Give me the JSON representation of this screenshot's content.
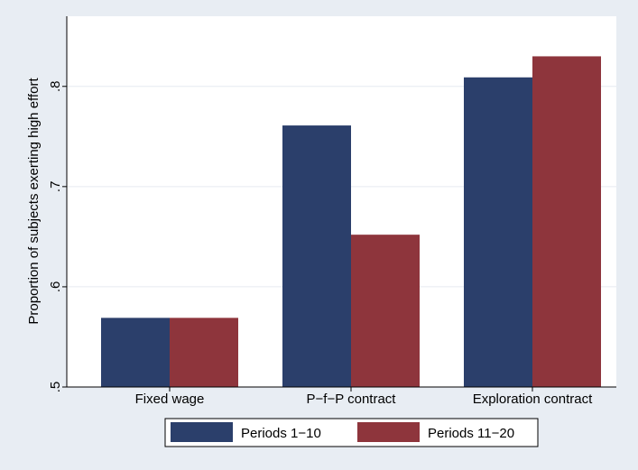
{
  "chart_data": {
    "type": "bar",
    "title": "",
    "xlabel": "",
    "ylabel": "Proportion of subjects exerting high effort",
    "categories": [
      "Fixed wage",
      "P−f−P contract",
      "Exploration contract"
    ],
    "series": [
      {
        "name": "Periods 1−10",
        "color": "#2b3f6b",
        "values": [
          0.569,
          0.761,
          0.809
        ]
      },
      {
        "name": "Periods 11−20",
        "color": "#8e353c",
        "values": [
          0.569,
          0.652,
          0.83
        ]
      }
    ],
    "ylim": [
      0.5,
      0.87
    ],
    "yticks": [
      0.5,
      0.6,
      0.7,
      0.8
    ],
    "ytick_labels": [
      ".5",
      ".6",
      ".7",
      ".8"
    ],
    "grid": true,
    "legend_position": "bottom"
  },
  "colors": {
    "background": "#e8edf3",
    "plot_background": "#ffffff",
    "grid": "#e6eaf0"
  }
}
